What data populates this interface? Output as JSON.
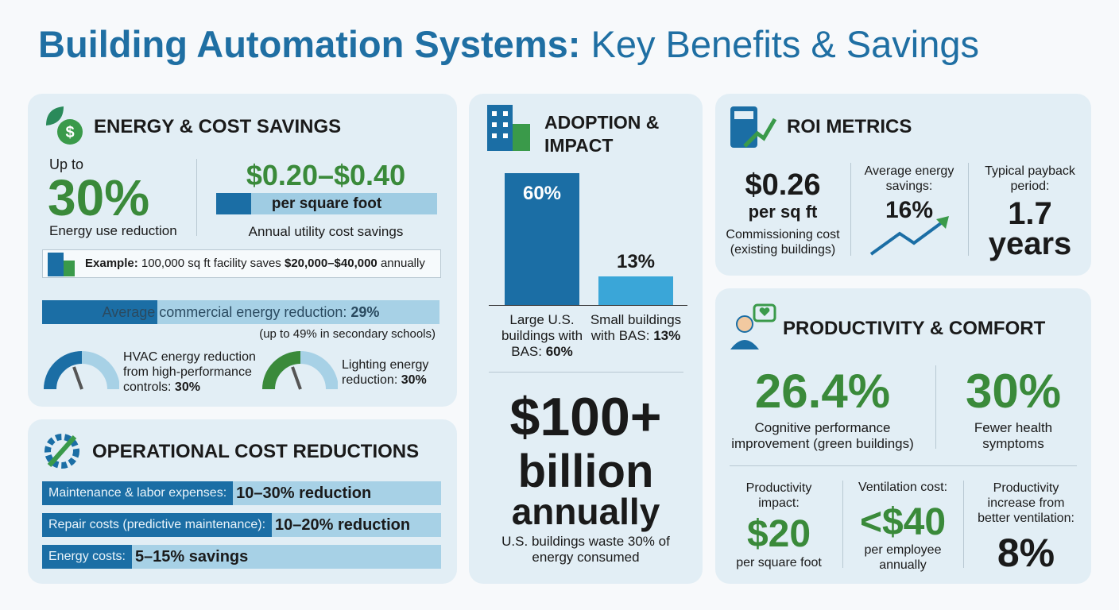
{
  "header": {
    "title_bold": "Building Automation Systems:",
    "title_rest": "Key Benefits & Savings"
  },
  "energy": {
    "title": "ENERGY & COST SAVINGS",
    "up_to": "Up to",
    "percent": "30%",
    "percent_label": "Energy use reduction",
    "range": "$0.20–$0.40",
    "range_unit": "per square foot",
    "range_label": "Annual utility cost savings",
    "example": {
      "label": "Example:",
      "text1": "100,000 sq ft facility saves",
      "amount": "$20,000–$40,000",
      "text2": "annually"
    },
    "average": {
      "label": "Average commercial energy reduction:",
      "value": 29,
      "value_label": "29%",
      "note": "(up to 49% in secondary schools)"
    },
    "hvac": {
      "text": "HVAC energy reduction from high-performance controls:",
      "value": "30%"
    },
    "lighting": {
      "text": "Lighting energy reduction:",
      "value": "30%"
    }
  },
  "operational": {
    "title": "OPERATIONAL COST REDUCTIONS",
    "items": [
      {
        "label": "Maintenance & labor expenses:",
        "value": "10–30% reduction"
      },
      {
        "label": "Repair costs (predictive maintenance):",
        "value": "10–20% reduction"
      },
      {
        "label": "Energy costs:",
        "value": "5–15% savings"
      }
    ]
  },
  "adoption": {
    "title": "ADOPTION & IMPACT",
    "bars": [
      {
        "value": 60,
        "value_label": "60%",
        "label": "Large U.S. buildings with BAS:",
        "label_value": "60%"
      },
      {
        "value": 13,
        "value_label": "13%",
        "label": "Small buildings with BAS:",
        "label_value": "13%"
      }
    ],
    "waste_amount": "$100+",
    "waste_unit": "billion",
    "waste_period": "annually",
    "waste_text": "U.S. buildings waste 30% of energy consumed"
  },
  "roi": {
    "title": "ROI METRICS",
    "cost": "$0.26",
    "cost_unit": "per sq ft",
    "cost_label": "Commissioning cost (existing buildings)",
    "savings_label": "Average energy savings:",
    "savings": "16%",
    "payback_label": "Typical payback period:",
    "payback": "1.7 years"
  },
  "productivity": {
    "title": "PRODUCTIVITY & COMFORT",
    "cognitive": "26.4%",
    "cognitive_label": "Cognitive performance improvement (green buildings)",
    "health": "30%",
    "health_label": "Fewer health symptoms",
    "impact_label": "Productivity impact:",
    "impact": "$20",
    "impact_unit": "per square foot",
    "vent_label": "Ventilation cost:",
    "vent": "<$40",
    "vent_unit": "per employee annually",
    "increase_label": "Productivity increase from better ventilation:",
    "increase": "8%"
  }
}
